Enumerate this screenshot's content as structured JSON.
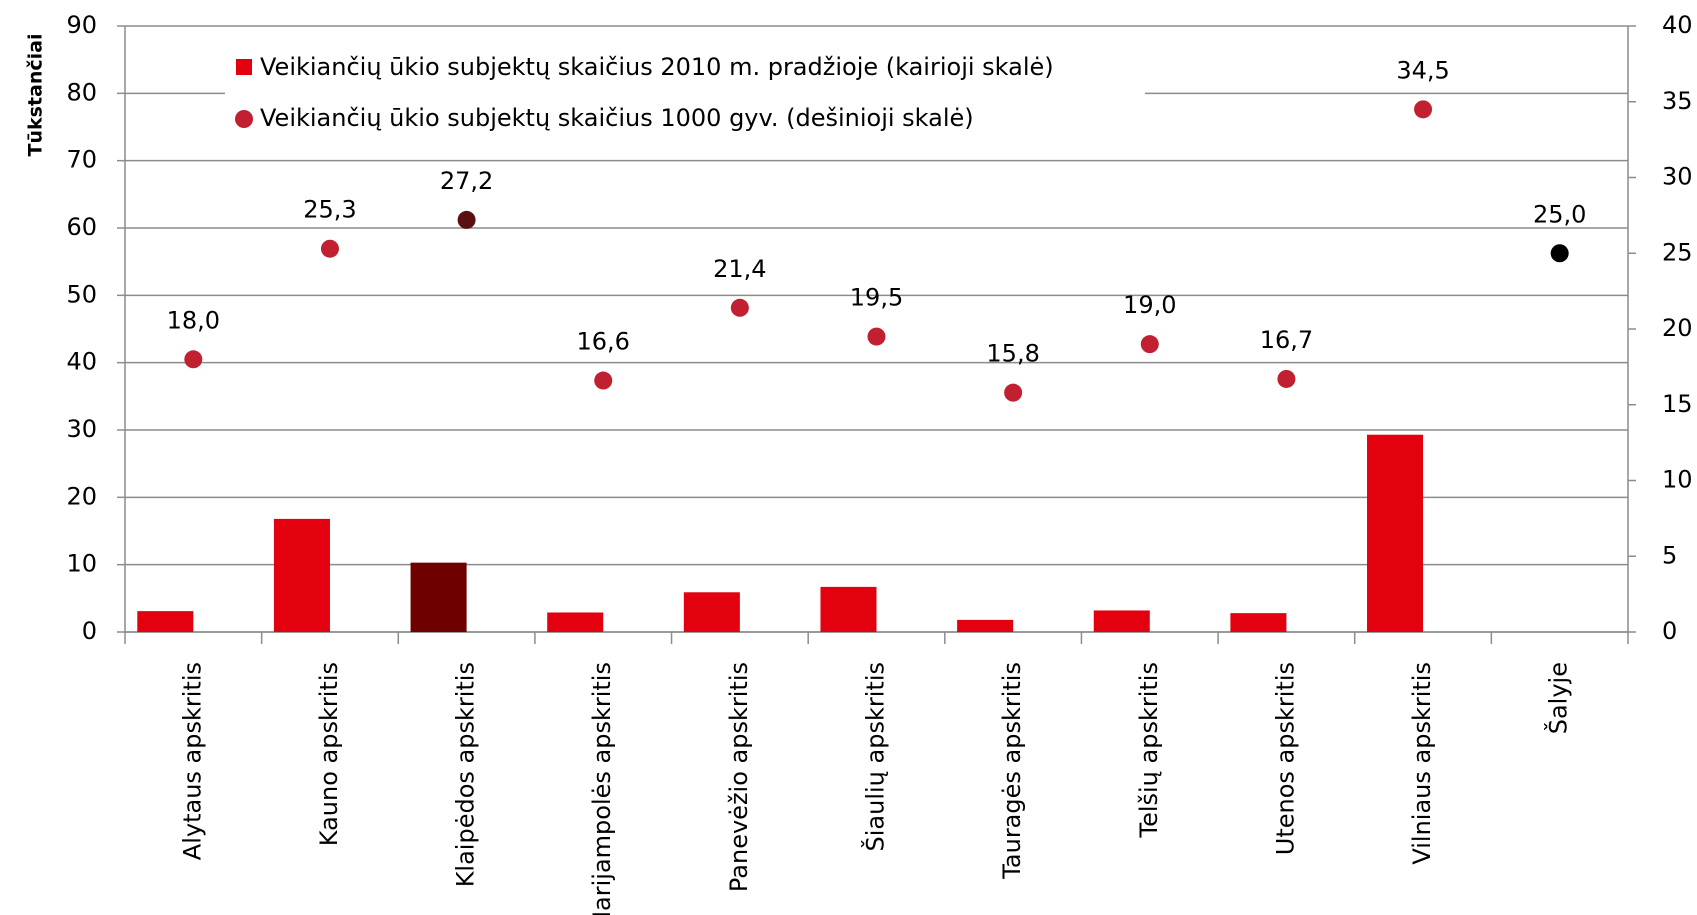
{
  "chart_data": {
    "type": "bar_dot",
    "y_label": "Tūkstančiai",
    "categories": [
      "Alytaus apskritis",
      "Kauno apskritis",
      "Klaipėdos apskritis",
      "Marijampolės apskritis",
      "Panevėžio apskritis",
      "Šiaulių apskritis",
      "Tauragės apskritis",
      "Telšių apskritis",
      "Utenos apskritis",
      "Vilniaus apskritis",
      "Šalyje"
    ],
    "series": [
      {
        "name": "Veikiančių ūkio subjektų skaičius 2010 m. pradžioje (kairioji skalė)",
        "color": "#e3000f",
        "colors": [
          "#e3000f",
          "#e3000f",
          "#6e0000",
          "#e3000f",
          "#e3000f",
          "#e3000f",
          "#e3000f",
          "#e3000f",
          "#e3000f",
          "#e3000f",
          "#e3000f"
        ],
        "values": [
          3.1,
          16.8,
          10.3,
          2.9,
          5.9,
          6.7,
          1.8,
          3.2,
          2.8,
          29.3,
          null
        ]
      },
      {
        "name": "Veikiančių ūkio subjektų skaičius 1000 gyv. (dešinioji skalė)",
        "color": "#c0202f",
        "axis": "y2",
        "colors": [
          "#c0202f",
          "#c0202f",
          "#5a1010",
          "#c0202f",
          "#c0202f",
          "#c0202f",
          "#c0202f",
          "#c0202f",
          "#c0202f",
          "#c0202f",
          "#000000"
        ],
        "values": [
          18.0,
          25.3,
          27.2,
          16.6,
          21.4,
          19.5,
          15.8,
          19.0,
          16.7,
          34.5,
          25.0
        ],
        "value_labels": [
          "18,0",
          "25,3",
          "27,2",
          "16,6",
          "21,4",
          "19,5",
          "15,8",
          "19,0",
          "16,7",
          "34,5",
          "25,0"
        ]
      }
    ],
    "ylim": [
      0,
      90
    ],
    "yticks": [
      0,
      10,
      20,
      30,
      40,
      50,
      60,
      70,
      80,
      90
    ],
    "y2lim": [
      0,
      40
    ],
    "y2ticks": [
      0,
      5,
      10,
      15,
      20,
      25,
      30,
      35,
      40
    ],
    "grid": true
  }
}
